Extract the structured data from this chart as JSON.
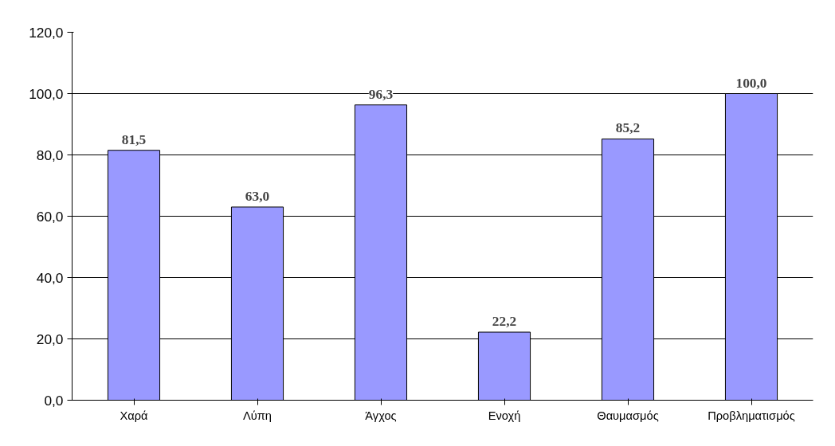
{
  "chart_data": {
    "type": "bar",
    "categories": [
      "Χαρά",
      "Λύπη",
      "Άγχος",
      "Ενοχή",
      "Θαυμασμός",
      "Προβληματισμός"
    ],
    "values": [
      81.5,
      63.0,
      96.3,
      22.2,
      85.2,
      100.0
    ],
    "value_labels": [
      "81,5",
      "63,0",
      "96,3",
      "22,2",
      "85,2",
      "100,0"
    ],
    "color": "#9999ff",
    "ylim": [
      0,
      120
    ],
    "yticks": [
      {
        "value": 0,
        "label": "0,0"
      },
      {
        "value": 20,
        "label": "20,0"
      },
      {
        "value": 40,
        "label": "40,0"
      },
      {
        "value": 60,
        "label": "60,0"
      },
      {
        "value": 80,
        "label": "80,0"
      },
      {
        "value": 100,
        "label": "100,0"
      },
      {
        "value": 120,
        "label": "120,0"
      }
    ],
    "grid": "y"
  }
}
